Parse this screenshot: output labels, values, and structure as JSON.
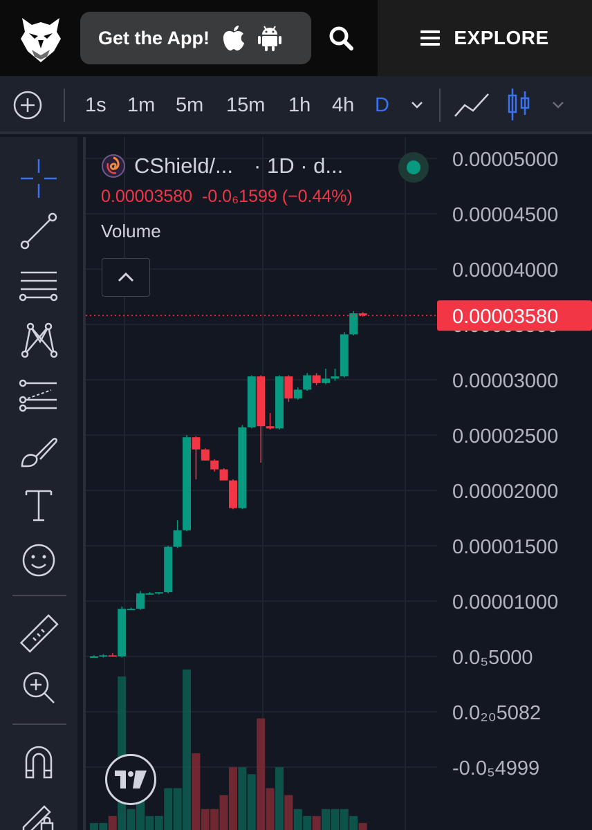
{
  "header": {
    "get_app_label": "Get the App!",
    "explore_label": "EXPLORE",
    "icons": [
      "owl-logo",
      "apple-icon",
      "android-icon",
      "search-icon",
      "hamburger-icon"
    ]
  },
  "toolbar": {
    "intervals": [
      "1s",
      "1m",
      "5m",
      "15m",
      "1h",
      "4h",
      "D"
    ],
    "active_interval": "D",
    "accent_color": "#3a72f0"
  },
  "left_tools": [
    "crosshair-icon",
    "trend-line-icon",
    "fib-retracement-icon",
    "pattern-icon",
    "projection-icon",
    "brush-icon",
    "text-icon",
    "emoji-icon",
    "ruler-icon",
    "zoom-in-icon",
    "magnet-icon",
    "lock-drawing-icon"
  ],
  "chart": {
    "symbol": "CShield/...",
    "interval_label": "· 1D · d...",
    "last_price": "0.00003580",
    "change": "-0.0₆1599 (−0.44%)",
    "volume_label": "Volume",
    "price_tag": "0.00003580",
    "y_axis_labels": [
      "0.00005000",
      "0.00004500",
      "0.00004000",
      "0.00003500",
      "0.00003000",
      "0.00002500",
      "0.00002000",
      "0.00001500",
      "0.00001000",
      "0.0₅5000",
      "0.0₂₀5082",
      "-0.0₅4999"
    ],
    "up_color": "#089981",
    "down_color": "#f23645"
  },
  "chart_data": {
    "type": "candlestick",
    "y_unit": "price",
    "candles": [
      {
        "o": 5e-06,
        "h": 5.1e-06,
        "l": 4.9e-06,
        "c": 5e-06,
        "vol": 1
      },
      {
        "o": 5e-06,
        "h": 5.2e-06,
        "l": 4.9e-06,
        "c": 5.1e-06,
        "vol": 1
      },
      {
        "o": 5.1e-06,
        "h": 5.3e-06,
        "l": 5e-06,
        "c": 5e-06,
        "vol": 2
      },
      {
        "o": 5e-06,
        "h": 9.5e-06,
        "l": 4.9e-06,
        "c": 9.3e-06,
        "vol": 22
      },
      {
        "o": 9.3e-06,
        "h": 9.4e-06,
        "l": 9.2e-06,
        "c": 9.3e-06,
        "vol": 3
      },
      {
        "o": 9.3e-06,
        "h": 1.09e-05,
        "l": 9.2e-06,
        "c": 1.07e-05,
        "vol": 5
      },
      {
        "o": 1.07e-05,
        "h": 1.08e-05,
        "l": 1.06e-05,
        "c": 1.07e-05,
        "vol": 2
      },
      {
        "o": 1.07e-05,
        "h": 1.08e-05,
        "l": 1.06e-05,
        "c": 1.08e-05,
        "vol": 2
      },
      {
        "o": 1.08e-05,
        "h": 1.5e-05,
        "l": 1.07e-05,
        "c": 1.49e-05,
        "vol": 6
      },
      {
        "o": 1.49e-05,
        "h": 1.73e-05,
        "l": 1.48e-05,
        "c": 1.64e-05,
        "vol": 6
      },
      {
        "o": 1.64e-05,
        "h": 2.5e-05,
        "l": 1.63e-05,
        "c": 2.48e-05,
        "vol": 23
      },
      {
        "o": 2.48e-05,
        "h": 2.49e-05,
        "l": 2.1e-05,
        "c": 2.37e-05,
        "vol": 11
      },
      {
        "o": 2.37e-05,
        "h": 2.38e-05,
        "l": 2.27e-05,
        "c": 2.27e-05,
        "vol": 3
      },
      {
        "o": 2.27e-05,
        "h": 2.28e-05,
        "l": 2.17e-05,
        "c": 2.19e-05,
        "vol": 3
      },
      {
        "o": 2.19e-05,
        "h": 2.2e-05,
        "l": 2.09e-05,
        "c": 2.09e-05,
        "vol": 5
      },
      {
        "o": 2.09e-05,
        "h": 2.1e-05,
        "l": 1.83e-05,
        "c": 1.84e-05,
        "vol": 9
      },
      {
        "o": 1.84e-05,
        "h": 2.59e-05,
        "l": 1.83e-05,
        "c": 2.57e-05,
        "vol": 9
      },
      {
        "o": 2.57e-05,
        "h": 3.04e-05,
        "l": 2.56e-05,
        "c": 3.03e-05,
        "vol": 8
      },
      {
        "o": 3.03e-05,
        "h": 3.04e-05,
        "l": 2.25e-05,
        "c": 2.58e-05,
        "vol": 16
      },
      {
        "o": 2.58e-05,
        "h": 2.7e-05,
        "l": 2.55e-05,
        "c": 2.56e-05,
        "vol": 6
      },
      {
        "o": 2.56e-05,
        "h": 3.04e-05,
        "l": 2.55e-05,
        "c": 3.03e-05,
        "vol": 9
      },
      {
        "o": 3.03e-05,
        "h": 3.04e-05,
        "l": 2.8e-05,
        "c": 2.83e-05,
        "vol": 5
      },
      {
        "o": 2.83e-05,
        "h": 2.93e-05,
        "l": 2.82e-05,
        "c": 2.91e-05,
        "vol": 3
      },
      {
        "o": 2.91e-05,
        "h": 3.06e-05,
        "l": 2.9e-05,
        "c": 3.04e-05,
        "vol": 2
      },
      {
        "o": 3.04e-05,
        "h": 3.06e-05,
        "l": 2.95e-05,
        "c": 2.97e-05,
        "vol": 2
      },
      {
        "o": 2.97e-05,
        "h": 3.1e-05,
        "l": 2.96e-05,
        "c": 3.01e-05,
        "vol": 3
      },
      {
        "o": 3.01e-05,
        "h": 3.1e-05,
        "l": 2.99e-05,
        "c": 3.03e-05,
        "vol": 3
      },
      {
        "o": 3.03e-05,
        "h": 3.43e-05,
        "l": 3.02e-05,
        "c": 3.41e-05,
        "vol": 3
      },
      {
        "o": 3.41e-05,
        "h": 3.62e-05,
        "l": 3.4e-05,
        "c": 3.6e-05,
        "vol": 2
      },
      {
        "o": 3.6e-05,
        "h": 3.61e-05,
        "l": 3.57e-05,
        "c": 3.58e-05,
        "vol": 1
      }
    ],
    "ylim": [
      -5e-06,
      5e-05
    ],
    "grid": true
  }
}
